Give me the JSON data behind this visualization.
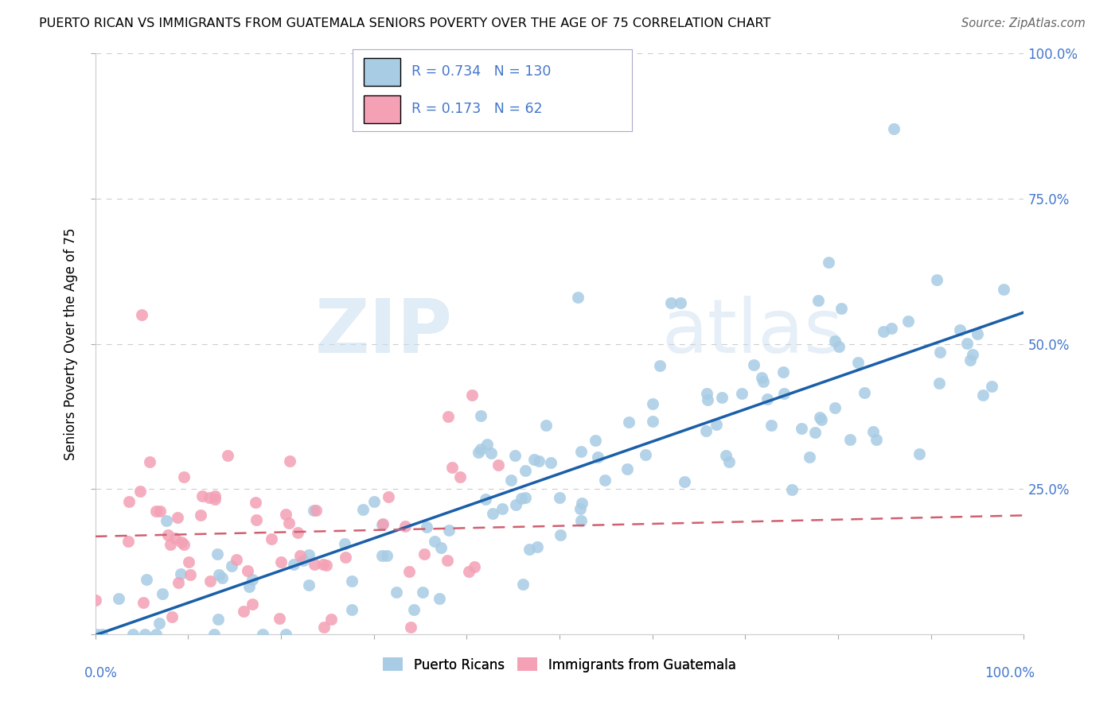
{
  "title": "PUERTO RICAN VS IMMIGRANTS FROM GUATEMALA SENIORS POVERTY OVER THE AGE OF 75 CORRELATION CHART",
  "source": "Source: ZipAtlas.com",
  "ylabel": "Seniors Poverty Over the Age of 75",
  "watermark_text": "ZIP",
  "watermark_text2": "atlas",
  "blue_color": "#a8cce4",
  "pink_color": "#f4a0b5",
  "blue_line_color": "#1a5fa8",
  "pink_line_color": "#d06070",
  "label_blue": "Puerto Ricans",
  "label_pink": "Immigrants from Guatemala",
  "blue_R": 0.734,
  "blue_N": 130,
  "pink_R": 0.173,
  "pink_N": 62,
  "background_color": "#ffffff",
  "grid_color": "#cccccc",
  "tick_color": "#4477cc",
  "title_color": "#000000",
  "source_color": "#666666"
}
